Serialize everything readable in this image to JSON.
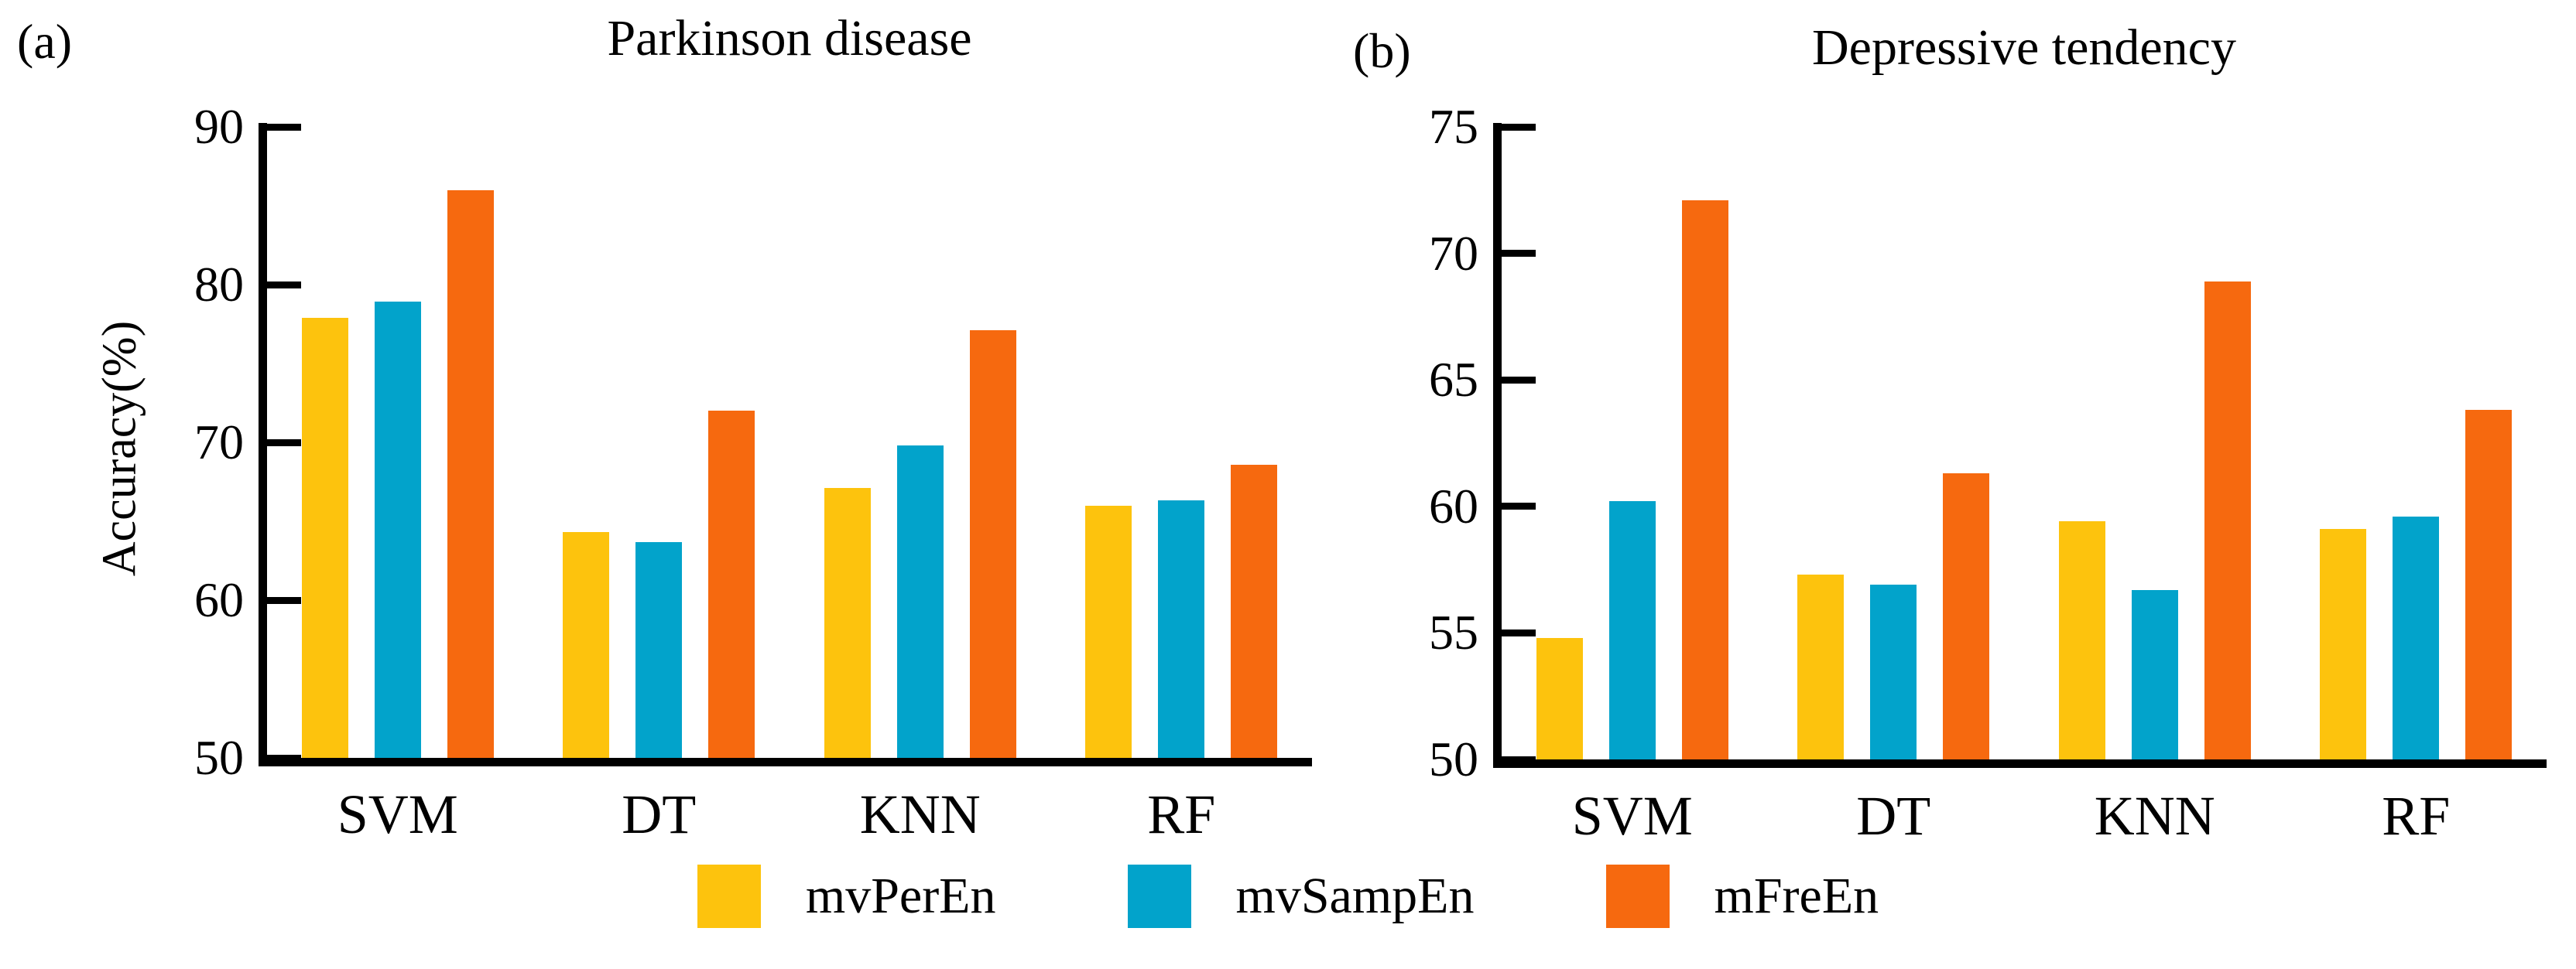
{
  "figure": {
    "panel_labels": {
      "a": "(a)",
      "b": "(b)"
    }
  },
  "legend": {
    "items": [
      {
        "label": "mvPerEn",
        "color": "#FDC30D"
      },
      {
        "label": "mvSampEn",
        "color": "#02A3CB"
      },
      {
        "label": "mFreEn",
        "color": "#F6690F"
      }
    ]
  },
  "chart_data": [
    {
      "type": "bar",
      "panel": "a",
      "title": "Parkinson disease",
      "xlabel": "",
      "ylabel": "Accuracy(%)",
      "categories": [
        "SVM",
        "DT",
        "KNN",
        "RF"
      ],
      "series": [
        {
          "name": "mvPerEn",
          "color": "#FDC30D",
          "values": [
            77.9,
            64.3,
            67.1,
            66.0
          ]
        },
        {
          "name": "mvSampEn",
          "color": "#02A3CB",
          "values": [
            78.9,
            63.7,
            69.8,
            66.3
          ]
        },
        {
          "name": "mFreEn",
          "color": "#F6690F",
          "values": [
            86.0,
            72.0,
            77.1,
            68.6
          ]
        }
      ],
      "ylim": [
        50,
        90
      ],
      "yticks": [
        50,
        60,
        70,
        80,
        90
      ],
      "grid": false,
      "legend_position": "shared-bottom"
    },
    {
      "type": "bar",
      "panel": "b",
      "title": "Depressive tendency",
      "xlabel": "",
      "ylabel": "",
      "categories": [
        "SVM",
        "DT",
        "KNN",
        "RF"
      ],
      "series": [
        {
          "name": "mvPerEn",
          "color": "#FDC30D",
          "values": [
            54.8,
            57.3,
            59.4,
            59.1
          ]
        },
        {
          "name": "mvSampEn",
          "color": "#02A3CB",
          "values": [
            60.2,
            56.9,
            56.7,
            59.6
          ]
        },
        {
          "name": "mFreEn",
          "color": "#F6690F",
          "values": [
            72.1,
            61.3,
            68.9,
            63.8
          ]
        }
      ],
      "ylim": [
        50,
        75
      ],
      "yticks": [
        50,
        55,
        60,
        65,
        70,
        75
      ],
      "grid": false,
      "legend_position": "shared-bottom"
    }
  ]
}
